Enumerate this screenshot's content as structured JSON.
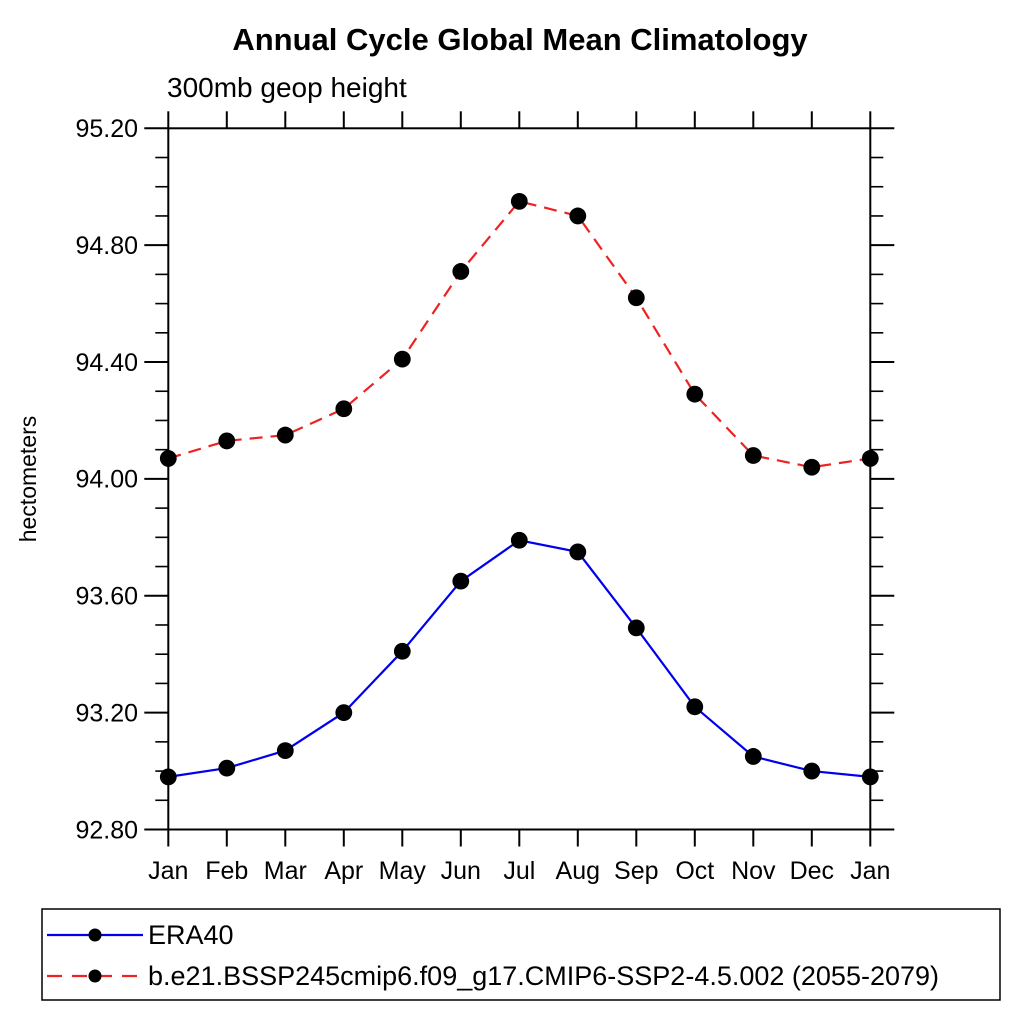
{
  "page": {
    "background_color": "#ffffff",
    "axis_color": "#000000",
    "text_color": "#000000"
  },
  "chart_data": {
    "type": "line",
    "title": "Annual Cycle Global Mean Climatology",
    "subtitle": "300mb geop height",
    "ylabel": "hectometers",
    "categories": [
      "Jan",
      "Feb",
      "Mar",
      "Apr",
      "May",
      "Jun",
      "Jul",
      "Aug",
      "Sep",
      "Oct",
      "Nov",
      "Dec",
      "Jan"
    ],
    "ylim": [
      92.8,
      95.2
    ],
    "y_major_tick_step": 0.4,
    "y_minor_tick_step": 0.1,
    "y_tick_labels": [
      "92.80",
      "93.20",
      "93.60",
      "94.00",
      "94.40",
      "94.80",
      "95.20"
    ],
    "grid": false,
    "legend": {
      "position": "bottom-left",
      "border": true
    },
    "marker": {
      "shape": "filled-circle",
      "color": "#000000"
    },
    "series": [
      {
        "name": "ERA40",
        "color": "#0000ee",
        "line_style": "solid",
        "values": [
          92.98,
          93.01,
          93.07,
          93.2,
          93.41,
          93.65,
          93.79,
          93.75,
          93.49,
          93.22,
          93.05,
          93.0,
          92.98
        ]
      },
      {
        "name": "b.e21.BSSP245cmip6.f09_g17.CMIP6-SSP2-4.5.002 (2055-2079)",
        "color": "#ee2222",
        "line_style": "dashed",
        "values": [
          94.07,
          94.13,
          94.15,
          94.24,
          94.41,
          94.71,
          94.95,
          94.9,
          94.62,
          94.29,
          94.08,
          94.04,
          94.07
        ]
      }
    ]
  }
}
